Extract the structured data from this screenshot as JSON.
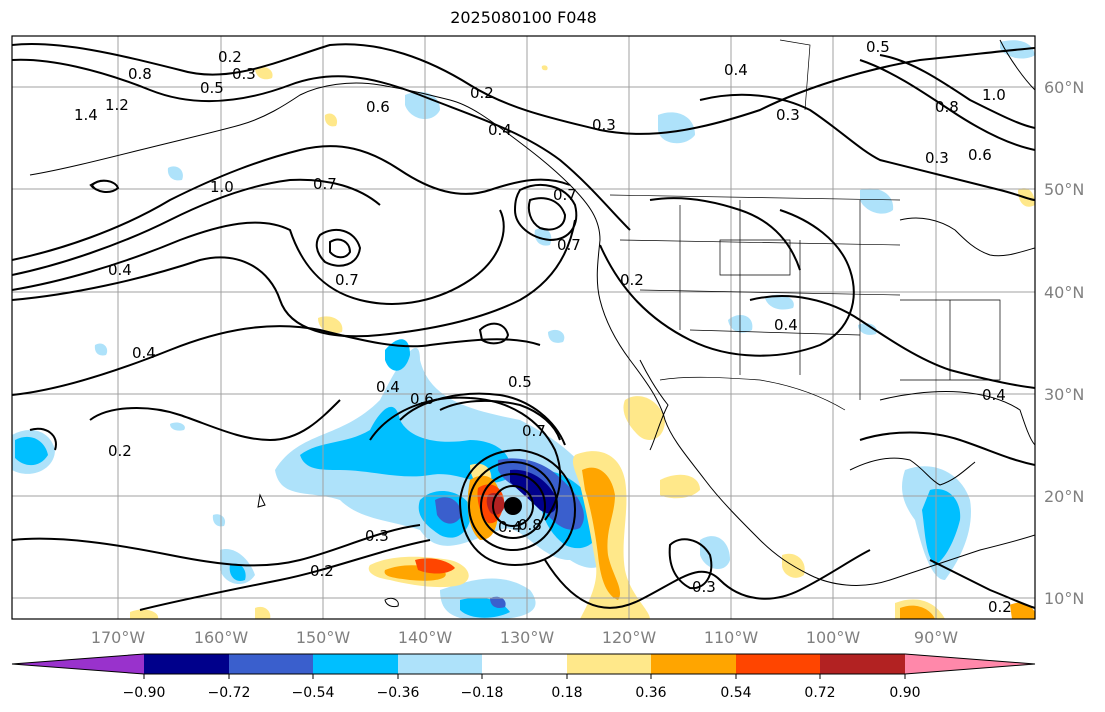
{
  "title": "2025080100 F048",
  "map": {
    "lon_labels": [
      "170°W",
      "160°W",
      "150°W",
      "140°W",
      "130°W",
      "120°W",
      "110°W",
      "100°W",
      "90°W"
    ],
    "lat_labels": [
      "60°N",
      "50°N",
      "40°N",
      "30°N",
      "20°N",
      "10°N"
    ],
    "extent": {
      "lon": [
        -180,
        -80
      ],
      "lat": [
        8,
        65
      ]
    },
    "contour_labels": [
      "0.2",
      "0.3",
      "0.8",
      "0.5",
      "1.4",
      "1.2",
      "0.6",
      "0.2",
      "0.4",
      "0.3",
      "0.7",
      "0.7",
      "0.7",
      "1.0",
      "0.4",
      "0.7",
      "0.4",
      "0.2",
      "0.4",
      "0.4",
      "0.5",
      "0.6",
      "0.7",
      "0.2",
      "0.3",
      "0.4",
      "0.8",
      "0.3",
      "0.2",
      "0.3",
      "0.4",
      "1.0",
      "0.6",
      "0.8",
      "0.3",
      "0.4",
      "0.2",
      "0.5"
    ]
  },
  "colorbar": {
    "ticks": [
      "−0.90",
      "−0.72",
      "−0.54",
      "−0.36",
      "−0.18",
      "0.18",
      "0.36",
      "0.54",
      "0.72",
      "0.90"
    ],
    "colors": [
      "#9932cc",
      "#00008b",
      "#3a5fcd",
      "#00bfff",
      "#aee2fa",
      "#ffffff",
      "#ffe88a",
      "#ffa500",
      "#ff4500",
      "#b22222",
      "#ff88aa"
    ]
  }
}
